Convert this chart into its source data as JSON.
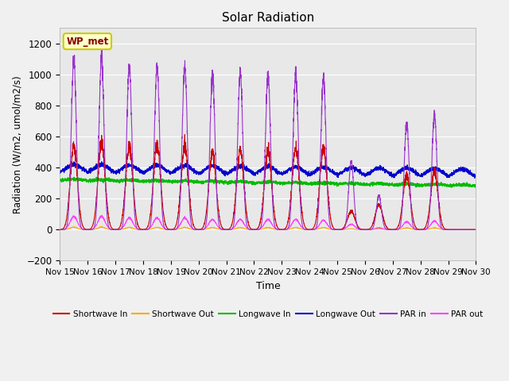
{
  "title": "Solar Radiation",
  "xlabel": "Time",
  "ylabel": "Radiation (W/m2, umol/m2/s)",
  "ylim": [
    -200,
    1300
  ],
  "yticks": [
    -200,
    0,
    200,
    400,
    600,
    800,
    1000,
    1200
  ],
  "bg_color": "#f0f0f0",
  "plot_bg": "#e8e8e8",
  "label_box": "WP_met",
  "series": {
    "shortwave_in": {
      "color": "#cc0000",
      "label": "Shortwave In"
    },
    "shortwave_out": {
      "color": "#ffaa00",
      "label": "Shortwave Out"
    },
    "longwave_in": {
      "color": "#00bb00",
      "label": "Longwave In"
    },
    "longwave_out": {
      "color": "#0000cc",
      "label": "Longwave Out"
    },
    "par_in": {
      "color": "#9933cc",
      "label": "PAR in"
    },
    "par_out": {
      "color": "#ff44ff",
      "label": "PAR out"
    }
  },
  "n_days": 15,
  "start_day": 15,
  "pts_per_day": 288
}
